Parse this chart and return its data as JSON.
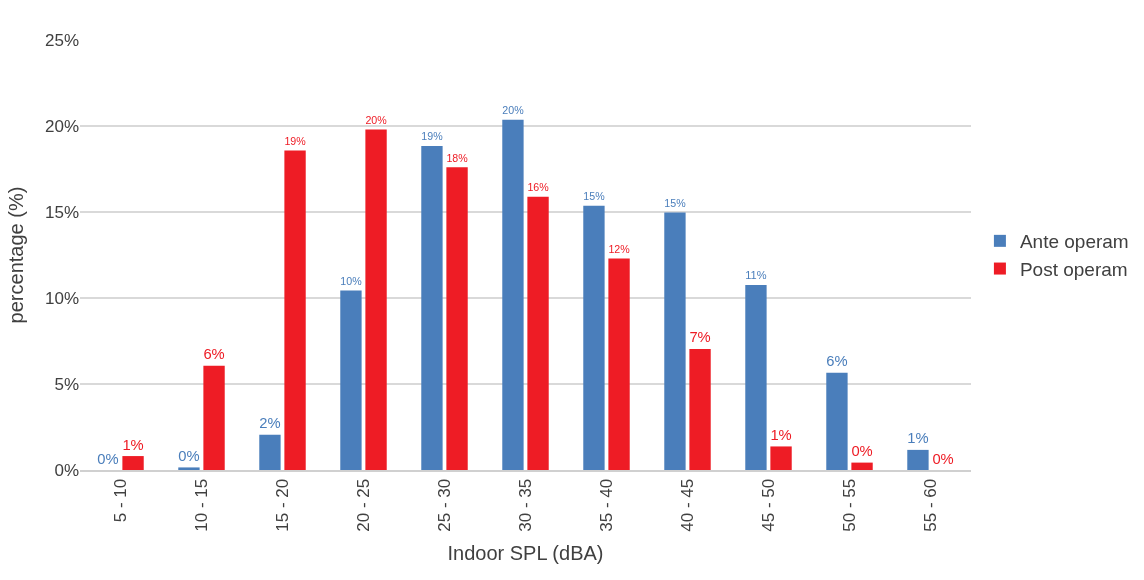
{
  "chart_data": {
    "type": "bar",
    "xlabel": "Indoor SPL (dBA)",
    "ylabel": "percentage (%)",
    "categories": [
      "5 - 10",
      "10 - 15",
      "15 - 20",
      "20 - 25",
      "25 - 30",
      "30 - 35",
      "35 - 40",
      "40 - 45",
      "45 - 50",
      "50 - 55",
      "55 - 60"
    ],
    "series": [
      {
        "name": "Ante operam",
        "color": "#4a7ebb",
        "values": [
          0,
          0.15,
          2.05,
          10.43,
          18.84,
          20.37,
          15.36,
          14.97,
          10.75,
          5.65,
          1.17
        ],
        "value_labels": [
          "0%",
          "0%",
          "2%",
          "10%",
          "19%",
          "20%",
          "15%",
          "15%",
          "11%",
          "6%",
          "1%"
        ]
      },
      {
        "name": "Post operam",
        "color": "#ee1c25",
        "values": [
          0.81,
          6.06,
          18.58,
          19.8,
          17.6,
          15.89,
          12.29,
          7.04,
          1.37,
          0.43,
          0
        ],
        "value_labels": [
          "1%",
          "6%",
          "19%",
          "20%",
          "18%",
          "16%",
          "12%",
          "7%",
          "1%",
          "0%",
          "0%"
        ]
      }
    ],
    "ylim": [
      0,
      25
    ],
    "yticks": [
      {
        "value": 0,
        "label": "0%"
      },
      {
        "value": 5,
        "label": "5%"
      },
      {
        "value": 10,
        "label": "10%"
      },
      {
        "value": 15,
        "label": "15%"
      },
      {
        "value": 20,
        "label": "20%"
      },
      {
        "value": 25,
        "label": "25%"
      }
    ],
    "grid": "y",
    "legend": "right"
  }
}
